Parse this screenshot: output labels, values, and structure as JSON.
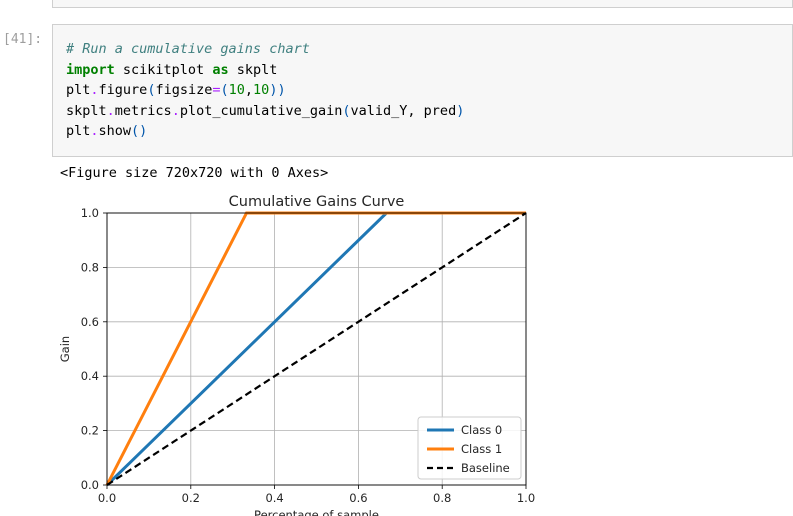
{
  "cell": {
    "prompt": "[41]:",
    "code_lines": [
      [
        {
          "t": "# Run a cumulative gains chart",
          "c": "comment"
        }
      ],
      [
        {
          "t": "import",
          "c": "kw"
        },
        {
          "t": " scikitplot ",
          "c": ""
        },
        {
          "t": "as",
          "c": "kw"
        },
        {
          "t": " skplt",
          "c": ""
        }
      ],
      [
        {
          "t": "plt",
          "c": ""
        },
        {
          "t": ".",
          "c": "op"
        },
        {
          "t": "figure",
          "c": ""
        },
        {
          "t": "(",
          "c": "paren"
        },
        {
          "t": "figsize",
          "c": ""
        },
        {
          "t": "=",
          "c": "op"
        },
        {
          "t": "(",
          "c": "paren"
        },
        {
          "t": "10",
          "c": "num"
        },
        {
          "t": ",",
          "c": ""
        },
        {
          "t": "10",
          "c": "num"
        },
        {
          "t": "))",
          "c": "paren"
        }
      ],
      [
        {
          "t": "skplt",
          "c": ""
        },
        {
          "t": ".",
          "c": "op"
        },
        {
          "t": "metrics",
          "c": ""
        },
        {
          "t": ".",
          "c": "op"
        },
        {
          "t": "plot_cumulative_gain",
          "c": ""
        },
        {
          "t": "(",
          "c": "paren"
        },
        {
          "t": "valid_Y, pred",
          "c": ""
        },
        {
          "t": ")",
          "c": "paren"
        }
      ],
      [
        {
          "t": "plt",
          "c": ""
        },
        {
          "t": ".",
          "c": "op"
        },
        {
          "t": "show",
          "c": ""
        },
        {
          "t": "()",
          "c": "paren"
        }
      ]
    ]
  },
  "output": {
    "stdout": "<Figure size 720x720 with 0 Axes>"
  },
  "colors": {
    "class0": "#1f77b4",
    "class1": "#ff7f0e",
    "baseline": "#000000",
    "grid": "#b0b0b0"
  },
  "chart_data": {
    "type": "line",
    "title": "Cumulative Gains Curve",
    "xlabel": "Percentage of sample",
    "ylabel": "Gain",
    "xlim": [
      0.0,
      1.0
    ],
    "ylim": [
      0.0,
      1.0
    ],
    "xticks": [
      "0.0",
      "0.2",
      "0.4",
      "0.6",
      "0.8",
      "1.0"
    ],
    "yticks": [
      "0.0",
      "0.2",
      "0.4",
      "0.6",
      "0.8",
      "1.0"
    ],
    "grid": true,
    "legend_position": "lower-right",
    "series": [
      {
        "name": "Class 0",
        "color": "#1f77b4",
        "style": "solid",
        "x": [
          0.0,
          0.667,
          1.0
        ],
        "y": [
          0.0,
          1.0,
          1.0
        ]
      },
      {
        "name": "Class 1",
        "color": "#ff7f0e",
        "style": "solid",
        "x": [
          0.0,
          0.333,
          1.0
        ],
        "y": [
          0.0,
          1.0,
          1.0
        ]
      },
      {
        "name": "Baseline",
        "color": "#000000",
        "style": "dashed",
        "x": [
          0.0,
          1.0
        ],
        "y": [
          0.0,
          1.0
        ]
      }
    ]
  }
}
